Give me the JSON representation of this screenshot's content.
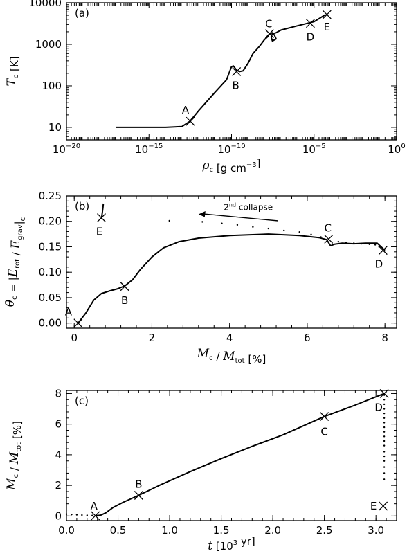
{
  "chart_data": [
    {
      "type": "line",
      "panel_label": "(a)",
      "x_scale": "log",
      "y_scale": "log",
      "xlim": [
        1e-20,
        1
      ],
      "ylim": [
        5,
        10000
      ],
      "x_ticks": [
        {
          "value": 1e-20,
          "mant": "10",
          "exp": "−20"
        },
        {
          "value": 1e-15,
          "mant": "10",
          "exp": "−15"
        },
        {
          "value": 1e-10,
          "mant": "10",
          "exp": "−10"
        },
        {
          "value": 1e-05,
          "mant": "10",
          "exp": "−5"
        },
        {
          "value": 1,
          "mant": "10",
          "exp": "0"
        }
      ],
      "y_ticks": [
        {
          "value": 10,
          "label": "10"
        },
        {
          "value": 100,
          "label": "100"
        },
        {
          "value": 1000,
          "label": "1000"
        },
        {
          "value": 10000,
          "label": "10000"
        }
      ],
      "xlabel": {
        "sym": "ρ",
        "sub": "c",
        "rest": " [g cm",
        "sup": "−3",
        "end": "]"
      },
      "ylabel": {
        "sym": "T",
        "sub": "c",
        "rest": " [K]"
      },
      "series": [
        {
          "style": "solid",
          "x": [
            1e-17,
            1e-16,
            1e-15,
            1e-14,
            1e-13,
            3e-13,
            1e-12,
            1e-11,
            5e-11,
            1e-10,
            1.3e-10,
            1.6e-10,
            2e-10,
            3e-10,
            5e-10,
            1e-09,
            2e-09,
            5e-09,
            1e-08,
            1.5e-08,
            2e-08,
            3e-08,
            4e-08,
            5e-08,
            3e-08,
            2.5e-08,
            3e-08,
            5e-08,
            1e-07,
            1e-06,
            1e-05,
            5e-05
          ],
          "y": [
            10,
            10,
            10,
            10,
            10.5,
            14,
            25,
            70,
            140,
            290,
            300,
            270,
            240,
            220,
            230,
            350,
            600,
            900,
            1300,
            1500,
            1800,
            1900,
            1650,
            1350,
            1200,
            1500,
            1800,
            1900,
            2200,
            2800,
            3500,
            5200
          ]
        }
      ],
      "markers": [
        {
          "label": "A",
          "x": 3.2e-13,
          "y": 14
        },
        {
          "label": "B",
          "x": 2e-10,
          "y": 220
        },
        {
          "label": "C",
          "x": 2e-08,
          "y": 1800
        },
        {
          "label": "D",
          "x": 6e-06,
          "y": 3200
        },
        {
          "label": "E",
          "x": 6e-05,
          "y": 5200
        }
      ]
    },
    {
      "type": "line",
      "panel_label": "(b)",
      "xlim": [
        -0.2,
        8.3
      ],
      "ylim": [
        -0.01,
        0.25
      ],
      "x_ticks": [
        0,
        2,
        4,
        6,
        8
      ],
      "y_ticks": [
        0.0,
        0.05,
        0.1,
        0.15,
        0.2,
        0.25
      ],
      "y_tick_labels": [
        "0.00",
        "0.05",
        "0.10",
        "0.15",
        "0.20",
        "0.25"
      ],
      "xlabel": {
        "sym": "M",
        "sub": "c",
        "mid": " / ",
        "sym2": "M",
        "sub2": "tot",
        "rest": " [%]"
      },
      "ylabel": {
        "sym": "θ",
        "sub": "c",
        "rest": " = |",
        "sym2": "E",
        "sub2": "rot",
        "mid": " / ",
        "sym3": "E",
        "sub3": "grav",
        "end": "|",
        "sub4": "c"
      },
      "annotation": {
        "prefix": "2",
        "sup": "nd",
        "suffix": " collapse"
      },
      "series": [
        {
          "style": "solid",
          "x": [
            0.1,
            0.3,
            0.5,
            0.7,
            0.9,
            1.1,
            1.3,
            1.5,
            1.7,
            2.0,
            2.3,
            2.7,
            3.2,
            4.0,
            5.0,
            5.8,
            6.3,
            6.5,
            6.55,
            6.6,
            6.7,
            6.9,
            7.2,
            7.5,
            7.8,
            8.0
          ],
          "y": [
            0.0,
            0.02,
            0.045,
            0.058,
            0.063,
            0.067,
            0.073,
            0.085,
            0.105,
            0.13,
            0.148,
            0.16,
            0.167,
            0.172,
            0.175,
            0.172,
            0.168,
            0.164,
            0.158,
            0.152,
            0.155,
            0.157,
            0.156,
            0.157,
            0.157,
            0.143
          ]
        },
        {
          "style": "dotted",
          "x": [
            2.45,
            3.3,
            3.8,
            4.2,
            4.6,
            5.0,
            5.4,
            5.8,
            6.1,
            6.35,
            6.55,
            6.8,
            7.0,
            7.2,
            7.4,
            7.6,
            7.75,
            7.85
          ],
          "y": [
            0.201,
            0.199,
            0.196,
            0.193,
            0.189,
            0.186,
            0.182,
            0.179,
            0.174,
            0.169,
            0.165,
            0.16,
            0.158,
            0.157,
            0.156,
            0.155,
            0.154,
            0.15
          ]
        },
        {
          "style": "solid",
          "x": [
            0.7,
            0.72,
            0.74,
            0.75
          ],
          "y": [
            0.205,
            0.215,
            0.228,
            0.235
          ]
        }
      ],
      "markers": [
        {
          "label": "A",
          "x": 0.1,
          "y": 0.0
        },
        {
          "label": "B",
          "x": 1.3,
          "y": 0.072
        },
        {
          "label": "C",
          "x": 6.55,
          "y": 0.165
        },
        {
          "label": "D",
          "x": 7.95,
          "y": 0.143
        },
        {
          "label": "E",
          "x": 0.7,
          "y": 0.207
        }
      ]
    },
    {
      "type": "line",
      "panel_label": "(c)",
      "xlim": [
        0.0,
        3.2
      ],
      "ylim": [
        -0.3,
        8.2
      ],
      "x_ticks": [
        0.0,
        0.5,
        1.0,
        1.5,
        2.0,
        2.5,
        3.0
      ],
      "x_tick_labels": [
        "0.0",
        "0.5",
        "1.0",
        "1.5",
        "2.0",
        "2.5",
        "3.0"
      ],
      "y_ticks": [
        0,
        2,
        4,
        6,
        8
      ],
      "xlabel": {
        "sym": "t",
        "rest": " [10",
        "sup": "3",
        "end": " yr]"
      },
      "ylabel": {
        "sym": "M",
        "sub": "c",
        "mid": " / ",
        "sym2": "M",
        "sub2": "tot",
        "rest": " [%]"
      },
      "series": [
        {
          "style": "dotted",
          "x": [
            0.0,
            0.05,
            0.1,
            0.15,
            0.2,
            0.25
          ],
          "y": [
            0.12,
            0.1,
            0.08,
            0.06,
            0.04,
            0.03
          ]
        },
        {
          "style": "solid",
          "x": [
            0.28,
            0.33,
            0.38,
            0.45,
            0.55,
            0.7,
            0.9,
            1.2,
            1.5,
            1.8,
            2.1,
            2.5,
            2.8,
            3.08
          ],
          "y": [
            0.02,
            0.05,
            0.2,
            0.55,
            0.9,
            1.35,
            2.0,
            2.9,
            3.75,
            4.55,
            5.3,
            6.5,
            7.25,
            8.0
          ]
        },
        {
          "style": "dotted",
          "x": [
            3.08,
            3.08,
            3.08,
            3.08,
            3.08,
            3.08,
            3.08,
            3.08,
            3.08,
            3.08,
            3.08,
            3.08,
            3.08,
            3.08,
            3.08,
            3.08,
            3.08,
            3.08
          ],
          "y": [
            7.9,
            7.6,
            7.3,
            7.0,
            6.7,
            6.4,
            6.1,
            5.8,
            5.5,
            5.2,
            4.9,
            4.6,
            4.2,
            3.9,
            3.6,
            3.2,
            2.8,
            2.4
          ]
        }
      ],
      "markers": [
        {
          "label": "A",
          "x": 0.28,
          "y": 0.02
        },
        {
          "label": "B",
          "x": 0.7,
          "y": 1.35
        },
        {
          "label": "C",
          "x": 2.5,
          "y": 6.5
        },
        {
          "label": "D",
          "x": 3.08,
          "y": 8.0
        },
        {
          "label": "E",
          "x": 3.07,
          "y": 0.65
        }
      ]
    }
  ]
}
